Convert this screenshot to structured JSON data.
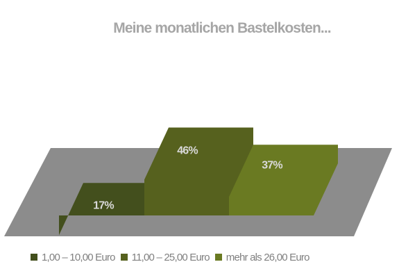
{
  "chart_data": {
    "type": "bar",
    "title": "Meine monatlichen Bastelkosten...",
    "categories": [
      "1,00 – 10,00 Euro",
      "11,00 – 25,00 Euro",
      "mehr als 26,00 Euro"
    ],
    "values": [
      17,
      46,
      37
    ],
    "value_labels": [
      "17%",
      "46%",
      "37%"
    ],
    "unit": "%",
    "colors": {
      "series": [
        "#434f1d",
        "#56611e",
        "#6a7a22"
      ],
      "floor": "#8c8c8c",
      "title": "#a6a6a6",
      "data_label": "#d9d9d9",
      "legend_text": "#808080"
    },
    "legend_position": "bottom",
    "grid": false,
    "style": "3d-perspective"
  }
}
